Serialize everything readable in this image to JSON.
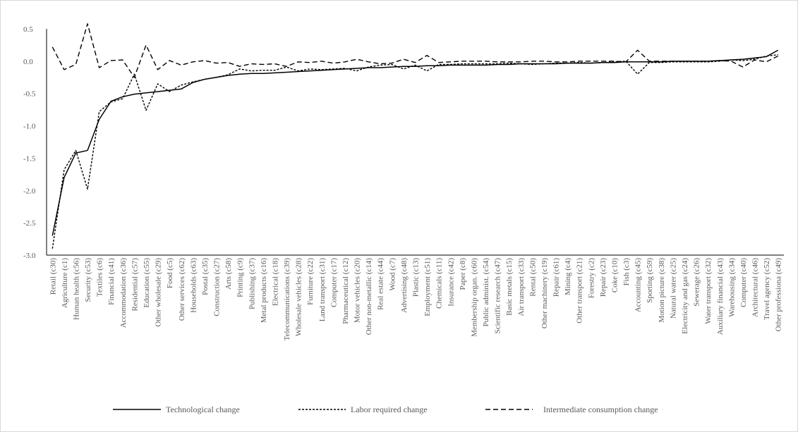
{
  "chart_data": {
    "type": "line",
    "title": "",
    "xlabel": "",
    "ylabel": "",
    "ylim": [
      -3.0,
      0.5
    ],
    "yticks": [
      "0.5",
      "0.0",
      "-0.5",
      "-1.0",
      "-1.5",
      "-2.0",
      "-2.5",
      "-3.0"
    ],
    "grid": false,
    "legend_position": "bottom",
    "categories": [
      "Retail (c30)",
      "Agriculture (c1)",
      "Human health (c56)",
      "Security (c53)",
      "Textiles (c6)",
      "Financial  (c41)",
      "Accommodation (c36)",
      "Residential (c57)",
      "Education (c55)",
      "Other wholesale (c29)",
      "Food (c5)",
      "Other services (c62)",
      "Households (c63)",
      "Postal (c35)",
      "Construction (c27)",
      "Arts (c58)",
      "Printing (c9)",
      "Publishing (c37)",
      "Metal products (c16)",
      "Electrical (c18)",
      "Telecommunications (c39)",
      "Wholesale vehicles (c28)",
      "Furniture (c22)",
      "Land transport (c31)",
      "Computer (c17)",
      "Pharmaceutical (c12)",
      "Motor vehicles (c20)",
      "Other non-metallic  (c14)",
      "Real estate (c44)",
      "Wood (c7)",
      "Advertising (c48)",
      "Plastic (c13)",
      "Employment (c51)",
      "Chemicals (c11)",
      "Insurance (c42)",
      "Paper (c8)",
      "Membership organ. (c60)",
      "Public administ. (c54)",
      "Scientific research (c47)",
      "Basic metals (c15)",
      "Air transport (c33)",
      "Rental (c50)",
      "Other machinery (c19)",
      "Repair (c61)",
      "Mining (c4)",
      "Other transport (c21)",
      "Forestry (c2)",
      "Repair (c23)",
      "Coke (c10)",
      "Fish (c3)",
      "Accounting (c45)",
      "Sporting (c59)",
      "Motion picture (c38)",
      "Natural water (c25)",
      "Electricity and gas (c24)",
      "Sewerage (c26)",
      "Water transport (c32)",
      "Auxiliary financial (c43)",
      "Warehousing (c34)",
      "Computer (c40)",
      "Architectural (c46)",
      "Travel agency (c52)",
      "Other professiona (c49)"
    ],
    "series": [
      {
        "name": "Technological change",
        "style": "solid",
        "color": "#000000",
        "values": [
          -2.7,
          -1.8,
          -1.42,
          -1.38,
          -0.9,
          -0.62,
          -0.55,
          -0.51,
          -0.49,
          -0.47,
          -0.45,
          -0.43,
          -0.33,
          -0.28,
          -0.25,
          -0.22,
          -0.2,
          -0.19,
          -0.19,
          -0.18,
          -0.17,
          -0.16,
          -0.15,
          -0.14,
          -0.13,
          -0.12,
          -0.11,
          -0.1,
          -0.1,
          -0.09,
          -0.08,
          -0.08,
          -0.07,
          -0.07,
          -0.06,
          -0.06,
          -0.06,
          -0.06,
          -0.05,
          -0.05,
          -0.04,
          -0.04,
          -0.04,
          -0.04,
          -0.03,
          -0.03,
          -0.03,
          -0.02,
          -0.02,
          -0.01,
          -0.01,
          -0.01,
          -0.01,
          0.0,
          0.0,
          0.0,
          0.0,
          0.01,
          0.02,
          0.03,
          0.05,
          0.07,
          0.17
        ]
      },
      {
        "name": "Labor required change",
        "style": "dotted",
        "color": "#000000",
        "values": [
          -2.9,
          -1.68,
          -1.38,
          -1.98,
          -0.78,
          -0.63,
          -0.58,
          -0.2,
          -0.76,
          -0.35,
          -0.47,
          -0.37,
          -0.32,
          -0.28,
          -0.25,
          -0.21,
          -0.12,
          -0.15,
          -0.14,
          -0.14,
          -0.09,
          -0.15,
          -0.12,
          -0.13,
          -0.12,
          -0.11,
          -0.15,
          -0.09,
          -0.06,
          -0.05,
          -0.12,
          -0.06,
          -0.15,
          -0.05,
          -0.05,
          -0.04,
          -0.04,
          -0.04,
          -0.04,
          -0.03,
          -0.04,
          -0.05,
          -0.04,
          -0.03,
          -0.03,
          -0.02,
          -0.03,
          -0.02,
          -0.01,
          0.0,
          -0.2,
          -0.02,
          -0.02,
          -0.01,
          -0.01,
          -0.01,
          -0.01,
          0.0,
          0.02,
          0.01,
          0.03,
          0.08,
          0.1
        ]
      },
      {
        "name": "Intermediate consumption change",
        "style": "dashed",
        "color": "#000000",
        "values": [
          0.22,
          -0.13,
          -0.05,
          0.58,
          -0.1,
          0.01,
          0.02,
          -0.25,
          0.25,
          -0.13,
          0.01,
          -0.06,
          -0.01,
          0.01,
          -0.03,
          -0.02,
          -0.08,
          -0.04,
          -0.05,
          -0.04,
          -0.08,
          -0.01,
          -0.02,
          0.0,
          -0.03,
          -0.01,
          0.03,
          -0.01,
          -0.04,
          -0.03,
          0.03,
          -0.02,
          0.09,
          -0.02,
          -0.01,
          0.0,
          0.0,
          0.0,
          -0.01,
          -0.01,
          -0.01,
          0.0,
          0.0,
          -0.01,
          -0.01,
          0.0,
          0.0,
          0.0,
          0.0,
          -0.01,
          0.17,
          0.0,
          0.0,
          0.0,
          0.0,
          0.0,
          0.0,
          0.01,
          0.0,
          -0.09,
          0.02,
          -0.01,
          0.08
        ]
      }
    ]
  }
}
